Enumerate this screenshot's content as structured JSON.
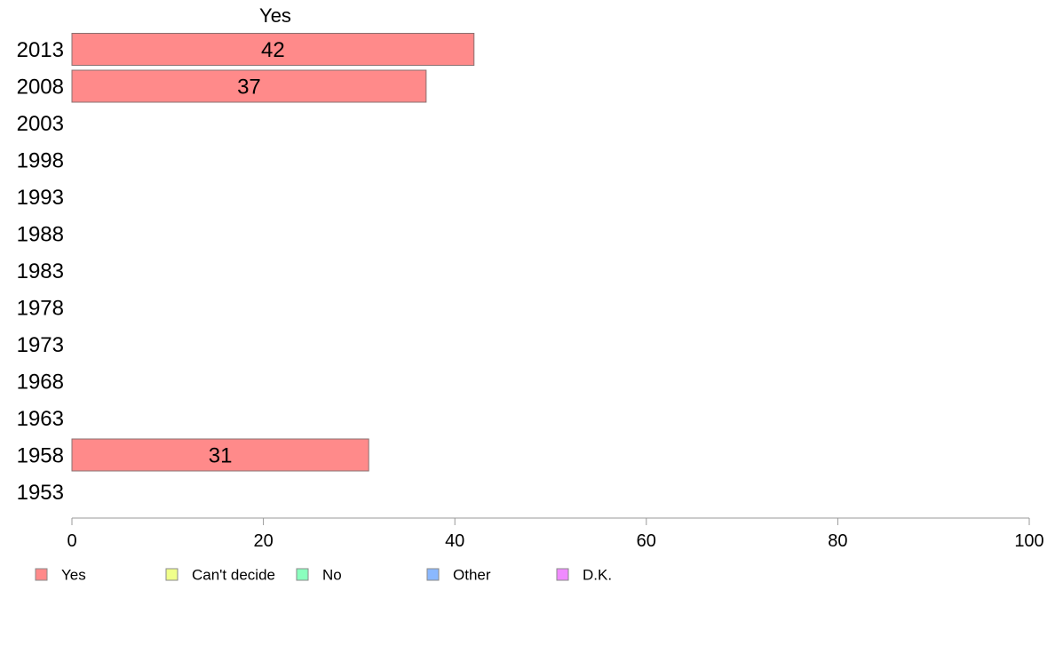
{
  "chart_data": {
    "type": "bar",
    "orientation": "horizontal",
    "title": "Yes",
    "xlabel": "",
    "ylabel": "",
    "xlim": [
      0,
      100
    ],
    "xticks": [
      0,
      20,
      40,
      60,
      80,
      100
    ],
    "categories": [
      "2013",
      "2008",
      "2003",
      "1998",
      "1993",
      "1988",
      "1983",
      "1978",
      "1973",
      "1968",
      "1963",
      "1958",
      "1953"
    ],
    "series": [
      {
        "name": "Yes",
        "color": "#ff8a8a",
        "values": [
          42,
          37,
          null,
          null,
          null,
          null,
          null,
          null,
          null,
          null,
          null,
          31,
          null
        ]
      }
    ],
    "legend": {
      "placement": "bottom",
      "entries": [
        {
          "label": "Yes",
          "color": "#ff8a8a"
        },
        {
          "label": "Can't decide",
          "color": "#f0ff8a"
        },
        {
          "label": "No",
          "color": "#8affbe"
        },
        {
          "label": "Other",
          "color": "#8ab8ff"
        },
        {
          "label": "D.K.",
          "color": "#f08aff"
        }
      ]
    },
    "grid": false
  }
}
